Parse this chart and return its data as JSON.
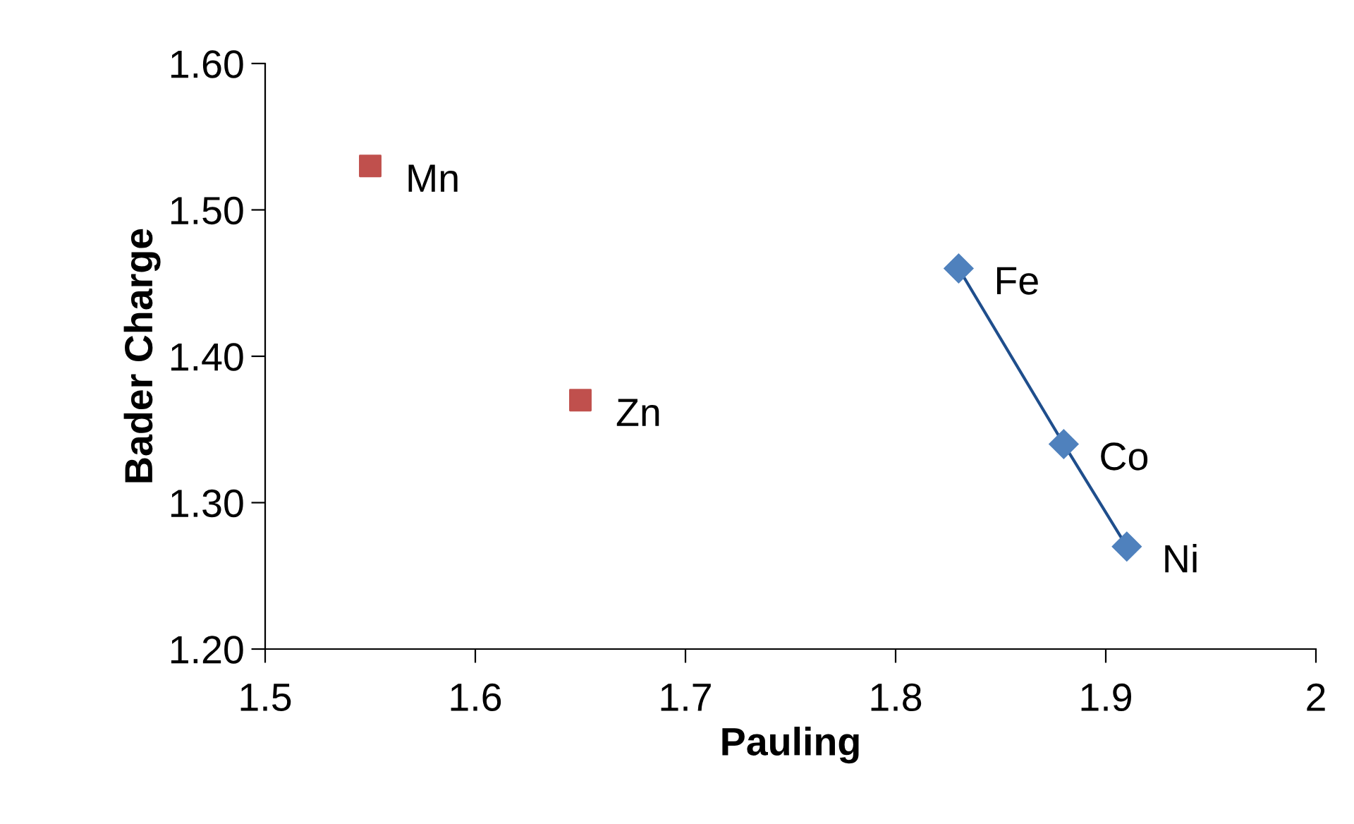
{
  "chart_data": {
    "type": "scatter",
    "xlabel": "Pauling",
    "ylabel": "Bader Charge",
    "xlim": [
      1.5,
      2
    ],
    "xticks": [
      1.5,
      1.6,
      1.7,
      1.8,
      1.9,
      2
    ],
    "ylim": [
      1.2,
      1.6
    ],
    "yticks": [
      {
        "value": 1.2,
        "label": "1.20"
      },
      {
        "value": 1.3,
        "label": "1.30"
      },
      {
        "value": 1.4,
        "label": "1.40"
      },
      {
        "value": 1.5,
        "label": "1.50"
      },
      {
        "value": 1.6,
        "label": "1.60"
      }
    ],
    "grid": false,
    "legend": false,
    "series": [
      {
        "marker": "square",
        "color": "#c0504d",
        "x": [
          1.55,
          1.65
        ],
        "values": [
          1.53,
          1.37
        ]
      },
      {
        "type": "line",
        "marker": "diamond",
        "line_style": "solid",
        "color": "#4f81bd",
        "x": [
          1.83,
          1.88,
          1.91
        ],
        "values": [
          1.46,
          1.34,
          1.27
        ]
      }
    ],
    "annotations": [
      {
        "text": "Mn",
        "x": 1.55,
        "y": 1.53
      },
      {
        "text": "Zn",
        "x": 1.65,
        "y": 1.37
      },
      {
        "text": "Fe",
        "x": 1.83,
        "y": 1.46
      },
      {
        "text": "Co",
        "x": 1.88,
        "y": 1.34
      },
      {
        "text": "Ni",
        "x": 1.91,
        "y": 1.27
      }
    ]
  }
}
